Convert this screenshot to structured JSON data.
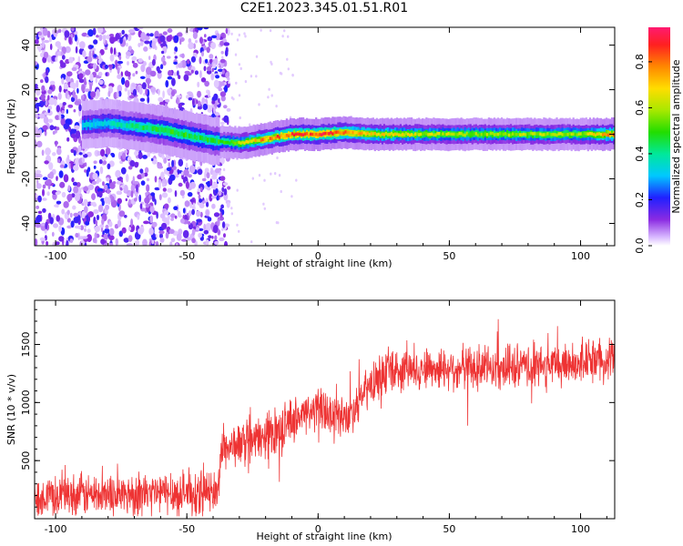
{
  "title": "C2E1.2023.345.01.51.R01",
  "chart_data": [
    {
      "type": "heatmap",
      "title": "",
      "xlabel": "Height of straight line (km)",
      "ylabel": "Frequency (Hz)",
      "xlim": [
        -108,
        113
      ],
      "ylim": [
        -50,
        48
      ],
      "xticks": [
        -100,
        -50,
        0,
        50,
        100
      ],
      "yticks": [
        -40,
        -20,
        0,
        20,
        40
      ],
      "colorbar": {
        "label": "Normalized spectral amplitude",
        "range": [
          0.0,
          0.95
        ],
        "ticks": [
          0.0,
          0.2,
          0.4,
          0.6,
          0.8
        ]
      },
      "ridge": {
        "description_points_x": [
          -108,
          -80,
          -60,
          -40,
          -30,
          -20,
          -10,
          0,
          10,
          20,
          50,
          100,
          113
        ],
        "frequency": [
          3,
          5,
          2,
          -3,
          -4,
          -2,
          0,
          0,
          1,
          0,
          0,
          0,
          0
        ],
        "peak_amplitude": [
          0.25,
          0.35,
          0.5,
          0.45,
          0.6,
          0.8,
          0.85,
          0.9,
          0.8,
          0.7,
          0.6,
          0.6,
          0.8
        ]
      }
    },
    {
      "type": "line",
      "title": "",
      "xlabel": "Height of straight line (km)",
      "ylabel": "SNR (10 * v/v)",
      "xlim": [
        -108,
        113
      ],
      "ylim": [
        0,
        1880
      ],
      "xticks": [
        -100,
        -50,
        0,
        50,
        100
      ],
      "yticks": [
        500,
        1000,
        1500
      ],
      "series": [
        {
          "color": "#ee3333",
          "trend_x": [
            -108,
            -60,
            -38,
            -37,
            -20,
            -10,
            0,
            10,
            15,
            20,
            25,
            40,
            60,
            80,
            100,
            113
          ],
          "trend_y": [
            200,
            220,
            230,
            600,
            700,
            850,
            950,
            850,
            1000,
            1150,
            1250,
            1300,
            1300,
            1300,
            1350,
            1400
          ],
          "noise_amplitude": 150
        }
      ]
    }
  ]
}
